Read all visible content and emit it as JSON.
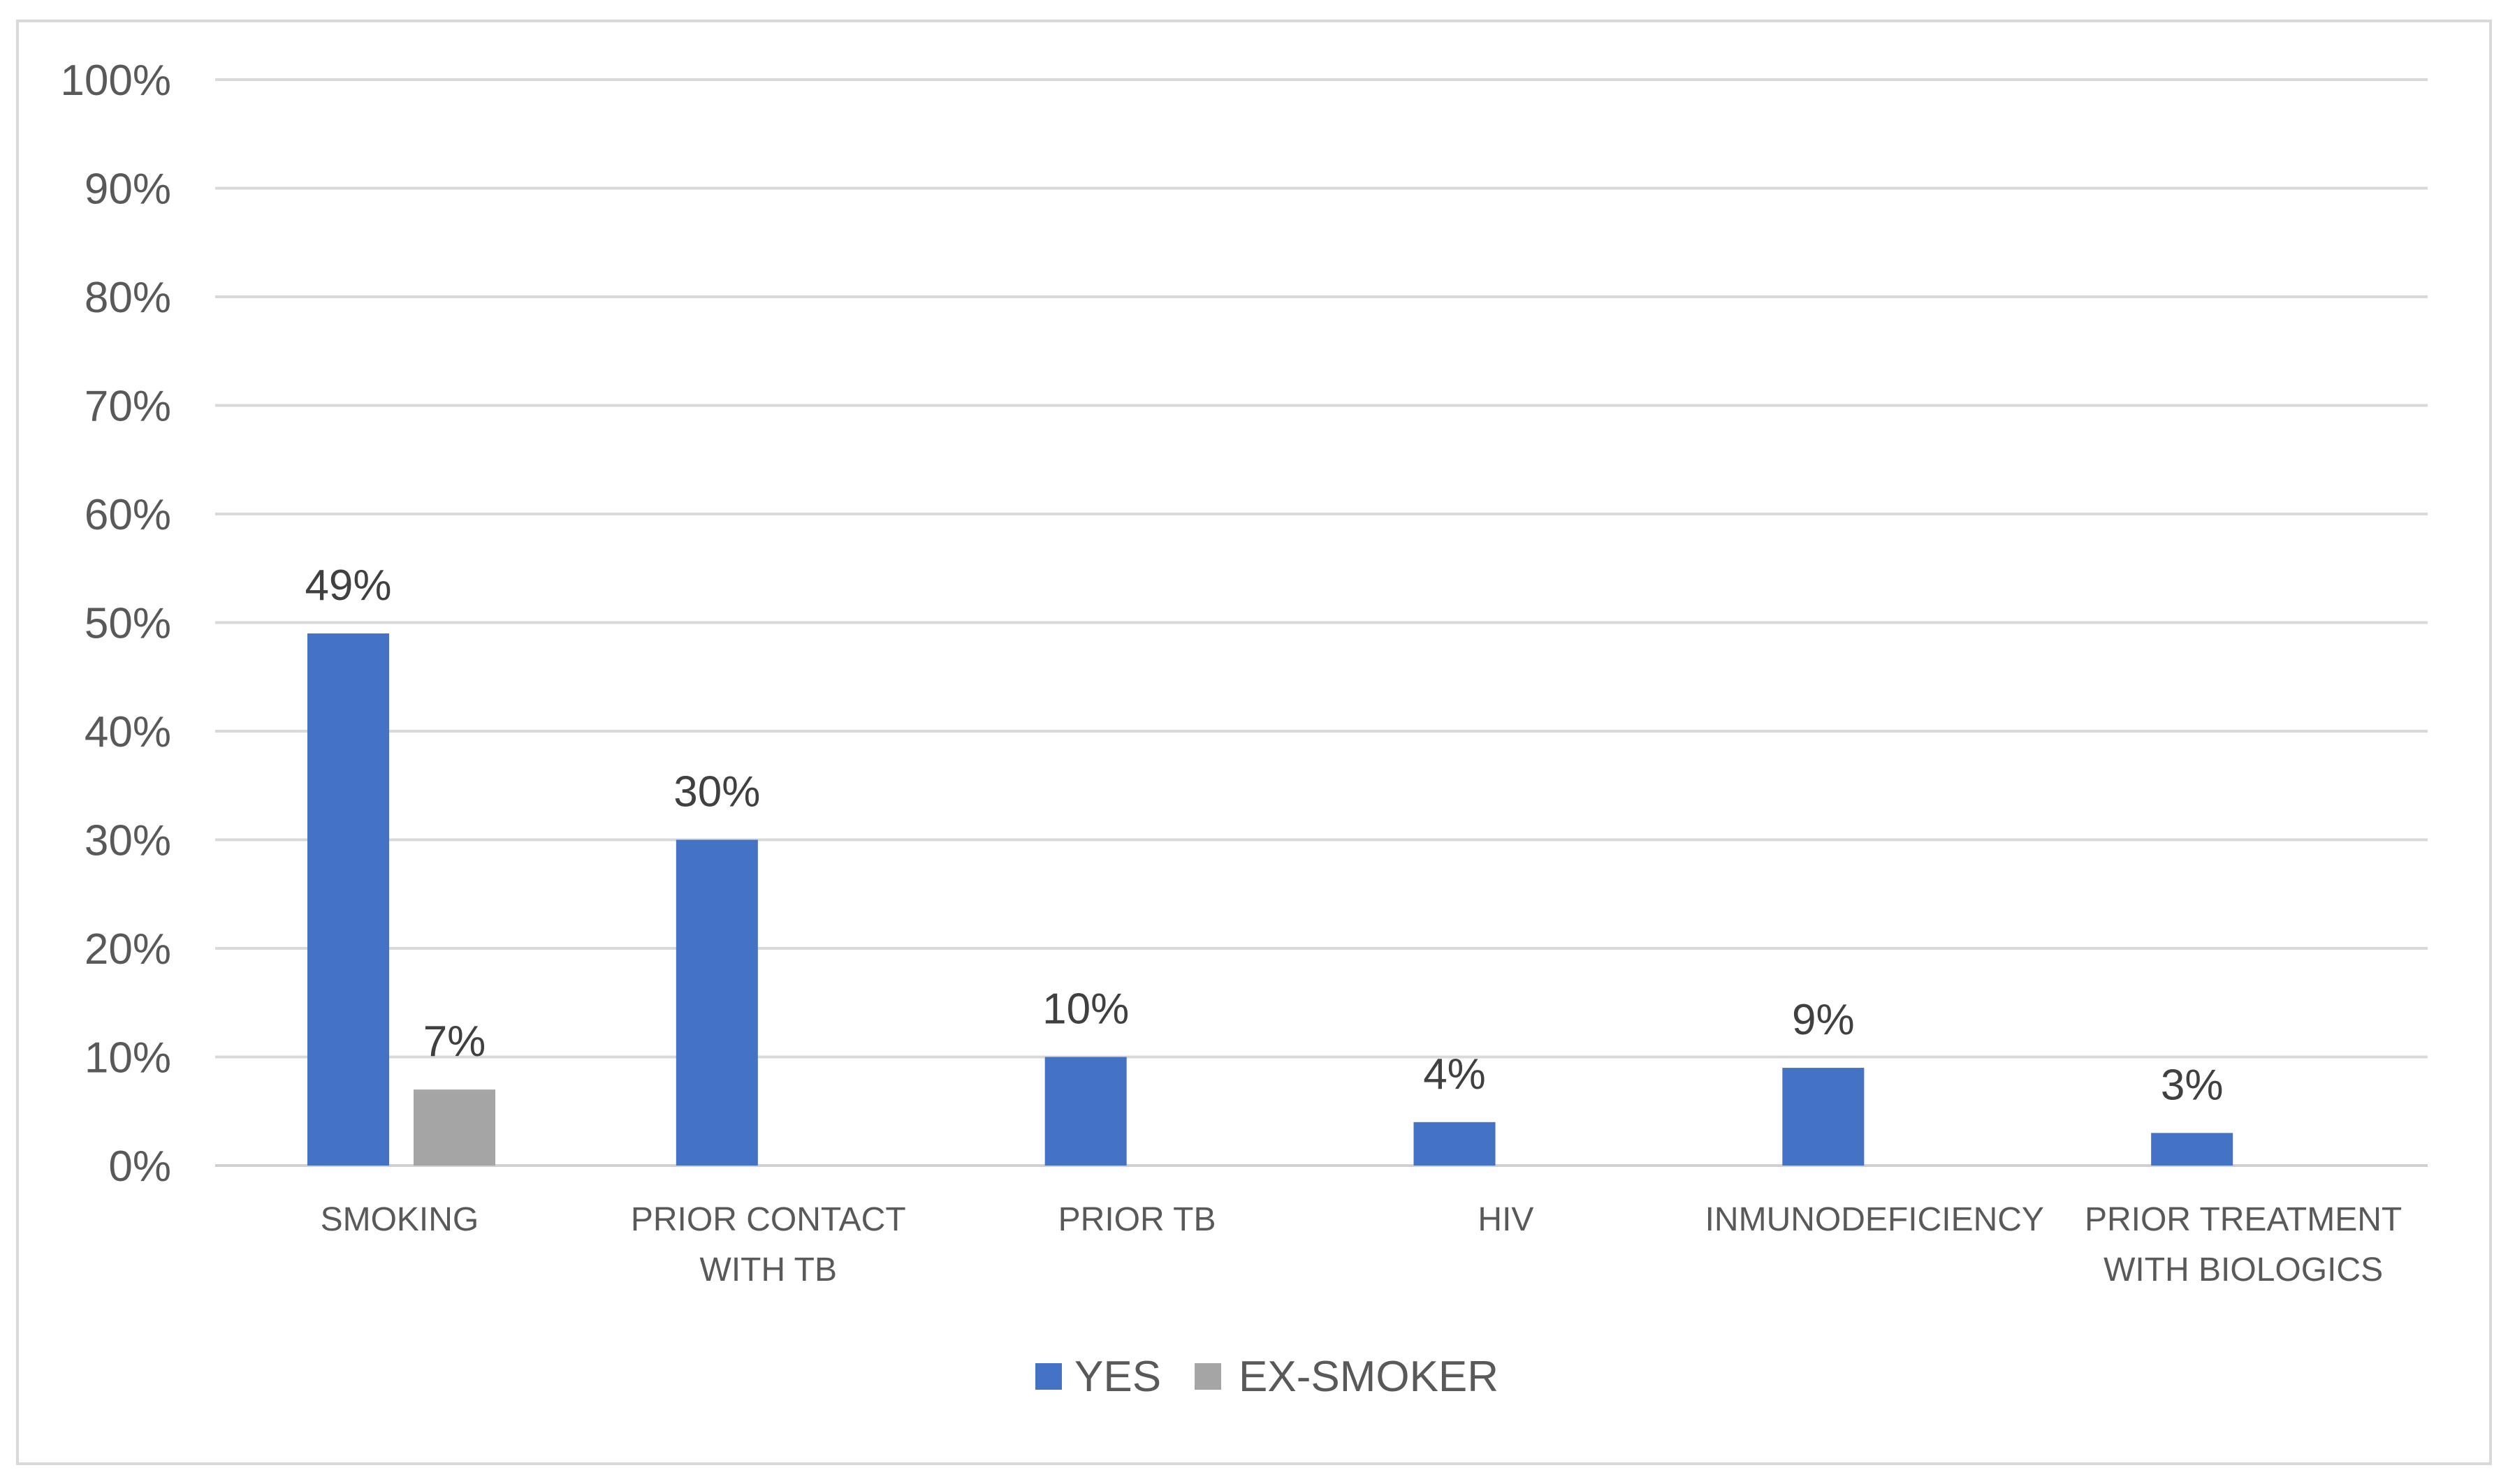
{
  "chart_data": {
    "type": "bar",
    "title": "",
    "xlabel": "",
    "ylabel": "",
    "ylim": [
      0,
      100
    ],
    "y_ticks": [
      "0%",
      "10%",
      "20%",
      "30%",
      "40%",
      "50%",
      "60%",
      "70%",
      "80%",
      "90%",
      "100%"
    ],
    "grid": true,
    "legend_position": "bottom",
    "categories": [
      [
        "SMOKING"
      ],
      [
        "PRIOR CONTACT",
        "WITH TB"
      ],
      [
        "PRIOR TB"
      ],
      [
        "HIV"
      ],
      [
        "INMUNODEFICIENCY"
      ],
      [
        "PRIOR TREATMENT",
        "WITH BIOLOGICS"
      ]
    ],
    "series": [
      {
        "name": "YES",
        "color": "#4472c4",
        "values": [
          49,
          30,
          10,
          4,
          9,
          3
        ],
        "labels": [
          "49%",
          "30%",
          "10%",
          "4%",
          "9%",
          "3%"
        ]
      },
      {
        "name": "EX-SMOKER",
        "color": "#a5a5a5",
        "values": [
          7,
          null,
          null,
          null,
          null,
          null
        ],
        "labels": [
          "7%",
          null,
          null,
          null,
          null,
          null
        ]
      }
    ]
  }
}
